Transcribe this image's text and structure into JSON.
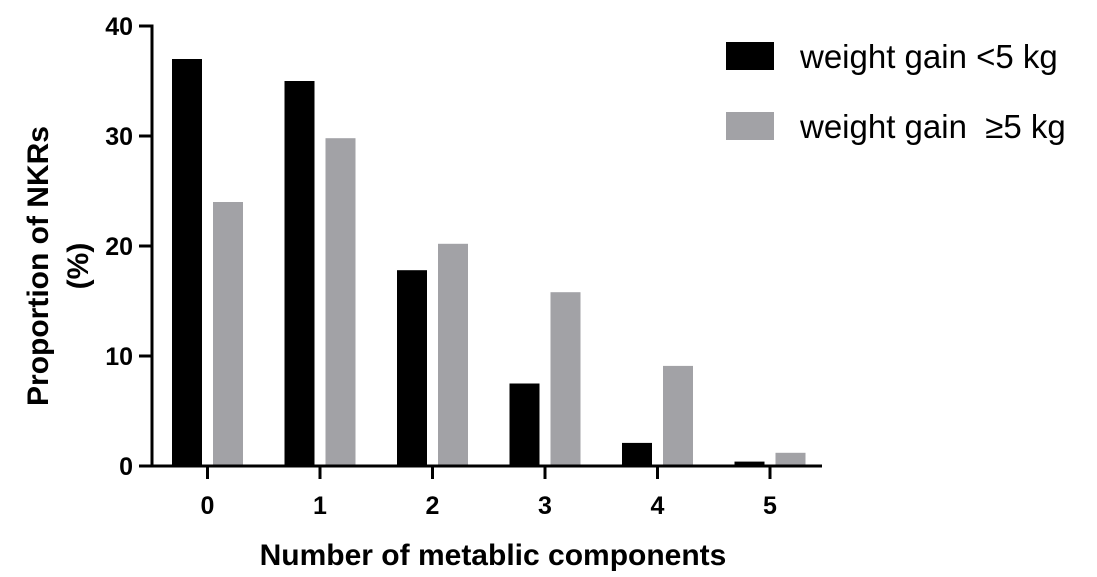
{
  "chart_data": {
    "type": "bar",
    "categories": [
      "0",
      "1",
      "2",
      "3",
      "4",
      "5"
    ],
    "series": [
      {
        "name": "weight gain <5 kg",
        "values": [
          37,
          35,
          17.8,
          7.5,
          2.1,
          0.4
        ],
        "color": "#000000"
      },
      {
        "name": "weight gain  ≥5 kg",
        "values": [
          24,
          29.8,
          20.2,
          15.8,
          9.1,
          1.2
        ],
        "color": "#a2a2a6"
      }
    ],
    "xlabel": "Number of metablic components",
    "ylabel": [
      "Proportion of NKRs",
      "(%)"
    ],
    "ylim": [
      0,
      40
    ],
    "yticks": [
      0,
      10,
      20,
      30,
      40
    ],
    "grid": false,
    "legend_position": "top-right"
  }
}
